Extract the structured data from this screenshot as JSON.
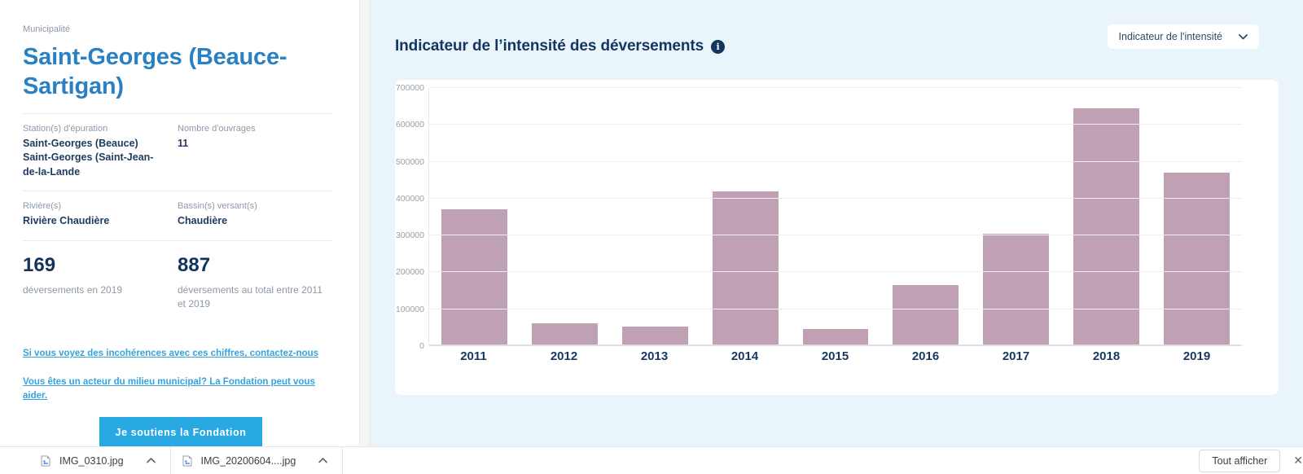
{
  "left_panel": {
    "municipality_label": "Municipalité",
    "municipality_name": "Saint-Georges (Beauce-Sartigan)",
    "fields": [
      {
        "label": "Station(s) d'épuration",
        "value": "Saint-Georges (Beauce)\nSaint-Georges (Saint-Jean-de-la-Lande"
      },
      {
        "label": "Nombre d'ouvrages",
        "value": "11"
      },
      {
        "label": "Rivière(s)",
        "value": "Rivière Chaudière"
      },
      {
        "label": "Bassin(s) versant(s)",
        "value": "Chaudière"
      }
    ],
    "stats": [
      {
        "value": "169",
        "caption": "déversements en 2019"
      },
      {
        "value": "887",
        "caption": "déversements au total entre 2011 et 2019"
      }
    ],
    "links": [
      {
        "text": "Si vous voyez des incohérences avec ces chiffres, contactez-nous"
      },
      {
        "text": "Vous êtes un acteur du milieu municipal? La Fondation peut vous aider."
      }
    ],
    "cta_label": "Je soutiens la Fondation"
  },
  "chart_panel": {
    "title": "Indicateur de l’intensité des déversements",
    "info_icon": "info-circle-icon",
    "dropdown": {
      "selected": "Indicateur de l'intensité",
      "icon": "chevron-down-icon"
    }
  },
  "chart_data": {
    "type": "bar",
    "title": "Indicateur de l’intensité des déversements",
    "categories": [
      "2011",
      "2012",
      "2013",
      "2014",
      "2015",
      "2016",
      "2017",
      "2018",
      "2019"
    ],
    "values": [
      370000,
      62000,
      52000,
      420000,
      47000,
      165000,
      305000,
      645000,
      470000
    ],
    "xlabel": "",
    "ylabel": "",
    "ylim": [
      0,
      700000
    ],
    "yticks": [
      0,
      100000,
      200000,
      300000,
      400000,
      500000,
      600000,
      700000
    ],
    "grid": true,
    "legend": false,
    "bar_color": "#c0a1b4"
  },
  "downloads_bar": {
    "items": [
      {
        "filename": "IMG_0310.jpg",
        "icon": "image-file-icon"
      },
      {
        "filename": "IMG_20200604....jpg",
        "icon": "image-file-icon"
      }
    ],
    "show_all_label": "Tout afficher",
    "close_icon": "✕"
  },
  "colors": {
    "accent_blue": "#29a9e1",
    "title_blue": "#2980c3",
    "navy": "#14355f",
    "bar": "#c0a1b4",
    "panel_bg": "#e9f4fb"
  }
}
